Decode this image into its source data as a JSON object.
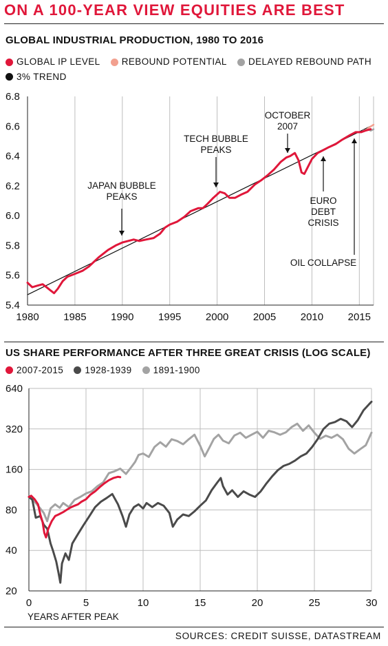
{
  "headline": "ON A 100-YEAR VIEW EQUITIES ARE BEST",
  "colors": {
    "headline": "#e0173a",
    "global_ip_level": "#e0173a",
    "rebound_potential": "#f2a08f",
    "delayed_rebound_path": "#a3a3a3",
    "trend_3pct": "#111111",
    "series_2007_2015": "#e0173a",
    "series_1928_1939": "#4a4a4a",
    "series_1891_1900": "#a3a3a3",
    "grid": "#bdbdbd"
  },
  "chart1": {
    "title": "GLOBAL INDUSTRIAL PRODUCTION, 1980 TO 2016",
    "legend": [
      {
        "label": "GLOBAL IP LEVEL",
        "color_key": "global_ip_level"
      },
      {
        "label": "REBOUND POTENTIAL",
        "color_key": "rebound_potential"
      },
      {
        "label": "DELAYED REBOUND PATH",
        "color_key": "delayed_rebound_path"
      },
      {
        "label": "3% TREND",
        "color_key": "trend_3pct"
      }
    ],
    "annotations": [
      {
        "lines": [
          "JAPAN BUBBLE",
          "PEAKS"
        ],
        "year": 1990
      },
      {
        "lines": [
          "TECH BUBBLE",
          "PEAKS"
        ],
        "year": 2000
      },
      {
        "lines": [
          "OCTOBER",
          "2007"
        ],
        "year": 2007.6
      },
      {
        "lines": [
          "EURO",
          "DEBT",
          "CRISIS"
        ],
        "year": 2011.3
      },
      {
        "lines": [
          "OIL COLLAPSE"
        ],
        "year": 2014.3
      }
    ]
  },
  "chart2": {
    "title": "US SHARE PERFORMANCE AFTER THREE GREAT CRISIS (LOG SCALE)",
    "legend": [
      {
        "label": "2007-2015",
        "color_key": "series_2007_2015"
      },
      {
        "label": "1928-1939",
        "color_key": "series_1928_1939"
      },
      {
        "label": "1891-1900",
        "color_key": "series_1891_1900"
      }
    ],
    "xlabel": "YEARS AFTER PEAK"
  },
  "chart_data": [
    {
      "type": "line",
      "title": "GLOBAL INDUSTRIAL PRODUCTION, 1980 TO 2016",
      "xlim": [
        1980,
        2016.5
      ],
      "ylim": [
        5.4,
        6.8
      ],
      "x_ticks": [
        1980,
        1985,
        1990,
        1995,
        2000,
        2005,
        2010,
        2015
      ],
      "y_ticks": [
        5.4,
        5.6,
        5.8,
        6.0,
        6.2,
        6.4,
        6.6,
        6.8
      ],
      "y_tick_labels": [
        "5.4",
        "5.6",
        "5.8",
        "6.0",
        "6.2",
        "6.4",
        "6.6",
        "6.8"
      ],
      "grid": "vertical",
      "series": [
        {
          "name": "GLOBAL IP LEVEL",
          "color_key": "global_ip_level",
          "points": [
            [
              1980,
              5.55
            ],
            [
              1980.5,
              5.52
            ],
            [
              1981,
              5.53
            ],
            [
              1981.6,
              5.54
            ],
            [
              1982,
              5.52
            ],
            [
              1982.4,
              5.5
            ],
            [
              1982.8,
              5.48
            ],
            [
              1983.2,
              5.51
            ],
            [
              1983.7,
              5.56
            ],
            [
              1984.2,
              5.59
            ],
            [
              1985,
              5.61
            ],
            [
              1985.8,
              5.63
            ],
            [
              1986.5,
              5.66
            ],
            [
              1987.5,
              5.72
            ],
            [
              1988.5,
              5.77
            ],
            [
              1989.3,
              5.8
            ],
            [
              1990,
              5.82
            ],
            [
              1990.6,
              5.83
            ],
            [
              1991.2,
              5.84
            ],
            [
              1991.8,
              5.83
            ],
            [
              1992.5,
              5.84
            ],
            [
              1993.3,
              5.85
            ],
            [
              1994,
              5.88
            ],
            [
              1994.5,
              5.92
            ],
            [
              1995,
              5.94
            ],
            [
              1995.8,
              5.96
            ],
            [
              1996.5,
              5.99
            ],
            [
              1997.2,
              6.03
            ],
            [
              1998,
              6.05
            ],
            [
              1998.5,
              6.05
            ],
            [
              1999,
              6.08
            ],
            [
              1999.6,
              6.12
            ],
            [
              2000.3,
              6.16
            ],
            [
              2000.8,
              6.15
            ],
            [
              2001.3,
              6.12
            ],
            [
              2001.9,
              6.12
            ],
            [
              2002.5,
              6.14
            ],
            [
              2003.2,
              6.16
            ],
            [
              2004,
              6.21
            ],
            [
              2004.7,
              6.24
            ],
            [
              2005.3,
              6.27
            ],
            [
              2006,
              6.31
            ],
            [
              2006.7,
              6.36
            ],
            [
              2007.3,
              6.39
            ],
            [
              2007.7,
              6.4
            ],
            [
              2008.2,
              6.42
            ],
            [
              2008.6,
              6.37
            ],
            [
              2008.9,
              6.29
            ],
            [
              2009.2,
              6.28
            ],
            [
              2009.6,
              6.33
            ],
            [
              2010,
              6.38
            ],
            [
              2010.6,
              6.42
            ],
            [
              2011.2,
              6.44
            ],
            [
              2011.8,
              6.46
            ],
            [
              2012.5,
              6.48
            ],
            [
              2013.2,
              6.51
            ],
            [
              2014,
              6.54
            ],
            [
              2014.6,
              6.56
            ],
            [
              2015.2,
              6.56
            ],
            [
              2015.6,
              6.57
            ],
            [
              2016.2,
              6.58
            ]
          ]
        },
        {
          "name": "REBOUND POTENTIAL",
          "color_key": "rebound_potential",
          "points": [
            [
              2015.6,
              6.57
            ],
            [
              2016.0,
              6.59
            ],
            [
              2016.5,
              6.61
            ]
          ]
        },
        {
          "name": "DELAYED REBOUND PATH",
          "color_key": "delayed_rebound_path",
          "points": [
            [
              2015.4,
              6.57
            ],
            [
              2015.9,
              6.58
            ],
            [
              2016.2,
              6.57
            ],
            [
              2016.5,
              6.58
            ]
          ]
        },
        {
          "name": "3% TREND",
          "color_key": "trend_3pct",
          "points": [
            [
              1980,
              5.47
            ],
            [
              2016.5,
              6.61
            ]
          ]
        }
      ]
    },
    {
      "type": "line",
      "title": "US SHARE PERFORMANCE AFTER THREE GREAT CRISIS (LOG SCALE)",
      "xlabel": "YEARS AFTER PEAK",
      "xlim": [
        0,
        30
      ],
      "ylim": [
        20,
        640
      ],
      "log_scale_y": true,
      "x_ticks": [
        0,
        5,
        10,
        15,
        20,
        25,
        30
      ],
      "y_ticks": [
        20,
        40,
        80,
        160,
        320,
        640
      ],
      "grid": "both",
      "series": [
        {
          "name": "2007-2015",
          "color_key": "series_2007_2015",
          "points": [
            [
              0,
              100
            ],
            [
              0.2,
              102
            ],
            [
              0.5,
              96
            ],
            [
              0.8,
              88
            ],
            [
              1.0,
              74
            ],
            [
              1.2,
              65
            ],
            [
              1.35,
              54
            ],
            [
              1.5,
              50
            ],
            [
              1.7,
              58
            ],
            [
              2.0,
              66
            ],
            [
              2.3,
              72
            ],
            [
              2.6,
              74
            ],
            [
              3.0,
              77
            ],
            [
              3.3,
              80
            ],
            [
              3.6,
              83
            ],
            [
              4.0,
              86
            ],
            [
              4.3,
              88
            ],
            [
              4.6,
              92
            ],
            [
              5.0,
              96
            ],
            [
              5.4,
              104
            ],
            [
              5.8,
              110
            ],
            [
              6.2,
              118
            ],
            [
              6.6,
              126
            ],
            [
              7.0,
              133
            ],
            [
              7.4,
              138
            ],
            [
              7.8,
              141
            ],
            [
              8.0,
              140
            ]
          ]
        },
        {
          "name": "1928-1939",
          "color_key": "series_1928_1939",
          "points": [
            [
              0,
              100
            ],
            [
              0.3,
              95
            ],
            [
              0.6,
              70
            ],
            [
              1.0,
              72
            ],
            [
              1.3,
              62
            ],
            [
              1.6,
              58
            ],
            [
              1.9,
              45
            ],
            [
              2.1,
              40
            ],
            [
              2.4,
              33
            ],
            [
              2.6,
              27
            ],
            [
              2.75,
              23
            ],
            [
              2.9,
              32
            ],
            [
              3.2,
              38
            ],
            [
              3.5,
              34
            ],
            [
              3.8,
              45
            ],
            [
              4.3,
              53
            ],
            [
              4.8,
              62
            ],
            [
              5.3,
              72
            ],
            [
              5.8,
              84
            ],
            [
              6.3,
              92
            ],
            [
              6.8,
              98
            ],
            [
              7.3,
              105
            ],
            [
              7.8,
              88
            ],
            [
              8.2,
              72
            ],
            [
              8.5,
              60
            ],
            [
              8.8,
              74
            ],
            [
              9.2,
              84
            ],
            [
              9.6,
              88
            ],
            [
              10.0,
              82
            ],
            [
              10.3,
              90
            ],
            [
              10.8,
              84
            ],
            [
              11.3,
              90
            ],
            [
              11.8,
              86
            ],
            [
              12.3,
              76
            ],
            [
              12.6,
              60
            ],
            [
              13.0,
              68
            ],
            [
              13.5,
              74
            ],
            [
              14.0,
              72
            ],
            [
              14.5,
              78
            ],
            [
              15.0,
              86
            ],
            [
              15.5,
              94
            ],
            [
              16.0,
              112
            ],
            [
              16.5,
              128
            ],
            [
              16.8,
              138
            ],
            [
              17.0,
              120
            ],
            [
              17.4,
              104
            ],
            [
              17.8,
              112
            ],
            [
              18.3,
              100
            ],
            [
              18.8,
              110
            ],
            [
              19.3,
              104
            ],
            [
              19.8,
              100
            ],
            [
              20.3,
              110
            ],
            [
              20.8,
              126
            ],
            [
              21.3,
              142
            ],
            [
              21.8,
              158
            ],
            [
              22.3,
              170
            ],
            [
              22.8,
              176
            ],
            [
              23.3,
              186
            ],
            [
              23.8,
              200
            ],
            [
              24.3,
              210
            ],
            [
              24.8,
              235
            ],
            [
              25.3,
              270
            ],
            [
              25.8,
              320
            ],
            [
              26.3,
              350
            ],
            [
              26.8,
              360
            ],
            [
              27.3,
              380
            ],
            [
              27.8,
              365
            ],
            [
              28.3,
              330
            ],
            [
              28.8,
              372
            ],
            [
              29.3,
              440
            ],
            [
              29.8,
              490
            ],
            [
              30.0,
              510
            ]
          ]
        },
        {
          "name": "1891-1900",
          "color_key": "series_1891_1900",
          "points": [
            [
              0,
              100
            ],
            [
              0.3,
              96
            ],
            [
              0.6,
              90
            ],
            [
              1.0,
              82
            ],
            [
              1.3,
              76
            ],
            [
              1.6,
              66
            ],
            [
              1.9,
              82
            ],
            [
              2.3,
              88
            ],
            [
              2.7,
              83
            ],
            [
              3.0,
              90
            ],
            [
              3.5,
              84
            ],
            [
              4.0,
              95
            ],
            [
              4.5,
              100
            ],
            [
              5.0,
              106
            ],
            [
              5.5,
              110
            ],
            [
              6.0,
              120
            ],
            [
              6.5,
              128
            ],
            [
              7.0,
              150
            ],
            [
              7.5,
              155
            ],
            [
              8.0,
              162
            ],
            [
              8.5,
              148
            ],
            [
              9.0,
              168
            ],
            [
              9.3,
              182
            ],
            [
              9.6,
              205
            ],
            [
              10.0,
              210
            ],
            [
              10.5,
              198
            ],
            [
              11.0,
              235
            ],
            [
              11.5,
              255
            ],
            [
              12.0,
              236
            ],
            [
              12.5,
              268
            ],
            [
              13.0,
              260
            ],
            [
              13.5,
              246
            ],
            [
              14.0,
              268
            ],
            [
              14.5,
              290
            ],
            [
              15.0,
              240
            ],
            [
              15.4,
              200
            ],
            [
              15.8,
              232
            ],
            [
              16.2,
              270
            ],
            [
              16.6,
              290
            ],
            [
              17.0,
              262
            ],
            [
              17.5,
              250
            ],
            [
              18.0,
              286
            ],
            [
              18.5,
              300
            ],
            [
              19.0,
              275
            ],
            [
              19.5,
              290
            ],
            [
              20.0,
              305
            ],
            [
              20.5,
              275
            ],
            [
              21.0,
              310
            ],
            [
              21.5,
              302
            ],
            [
              22.0,
              290
            ],
            [
              22.5,
              302
            ],
            [
              23.0,
              330
            ],
            [
              23.5,
              350
            ],
            [
              24.0,
              310
            ],
            [
              24.5,
              340
            ],
            [
              25.0,
              300
            ],
            [
              25.5,
              270
            ],
            [
              26.0,
              285
            ],
            [
              26.5,
              275
            ],
            [
              27.0,
              290
            ],
            [
              27.5,
              268
            ],
            [
              28.0,
              228
            ],
            [
              28.5,
              210
            ],
            [
              29.0,
              226
            ],
            [
              29.5,
              242
            ],
            [
              30.0,
              300
            ]
          ]
        }
      ]
    }
  ],
  "sources": "SOURCES: CREDIT SUISSE, DATASTREAM"
}
